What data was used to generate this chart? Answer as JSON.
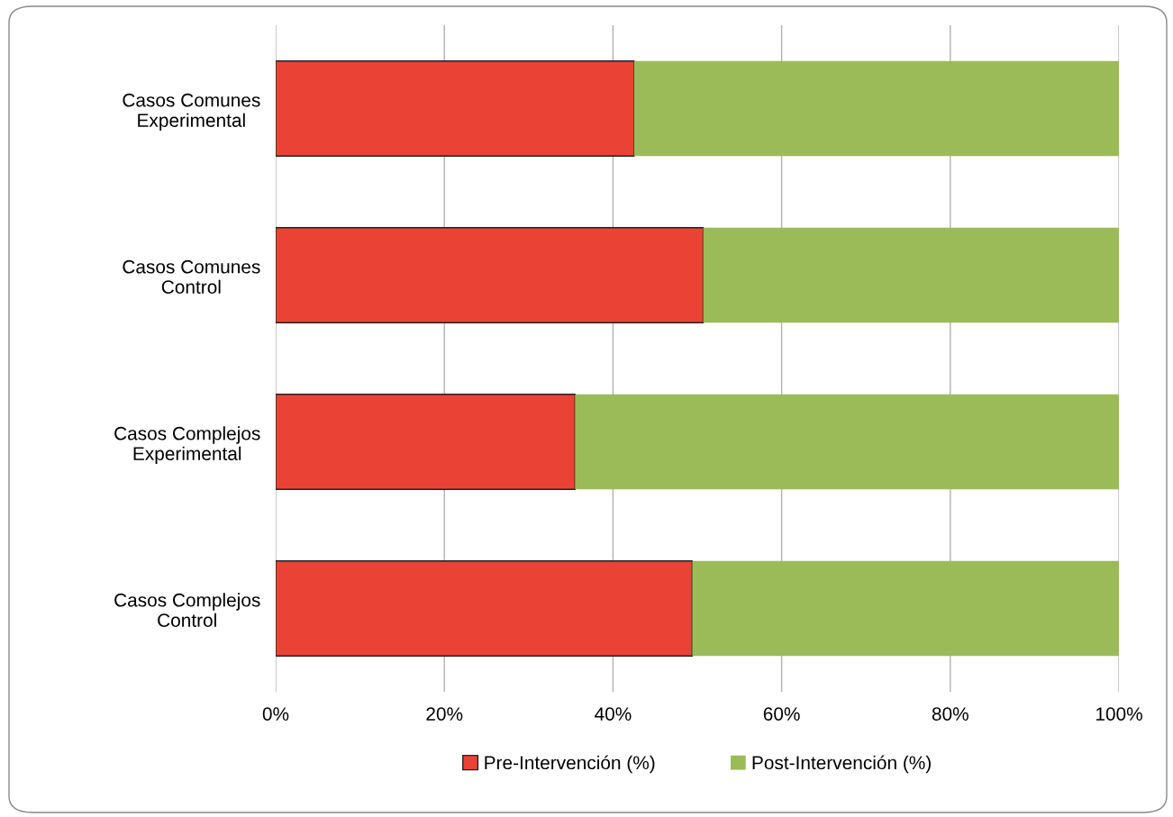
{
  "chart_data": {
    "type": "bar",
    "orientation": "horizontal",
    "stacked": true,
    "categories": [
      "Casos Comunes\nExperimental",
      "Casos Comunes\nControl",
      "Casos Complejos\nExperimental",
      "Casos Complejos\nControl"
    ],
    "series": [
      {
        "name": "Pre-Intervención (%)",
        "color": "#ea4335",
        "values": [
          42.5,
          50.7,
          35.5,
          49.4
        ]
      },
      {
        "name": "Post-Intervención (%)",
        "color": "#9bbb59",
        "values": [
          57.5,
          49.3,
          64.5,
          50.6
        ]
      }
    ],
    "xlim": [
      0,
      100
    ],
    "xticks": [
      {
        "value": 0,
        "label": "0%"
      },
      {
        "value": 20,
        "label": "20%"
      },
      {
        "value": 40,
        "label": "40%"
      },
      {
        "value": 60,
        "label": "60%"
      },
      {
        "value": 80,
        "label": "80%"
      },
      {
        "value": 100,
        "label": "100%"
      }
    ],
    "grid": "x",
    "legend": "bottom"
  }
}
